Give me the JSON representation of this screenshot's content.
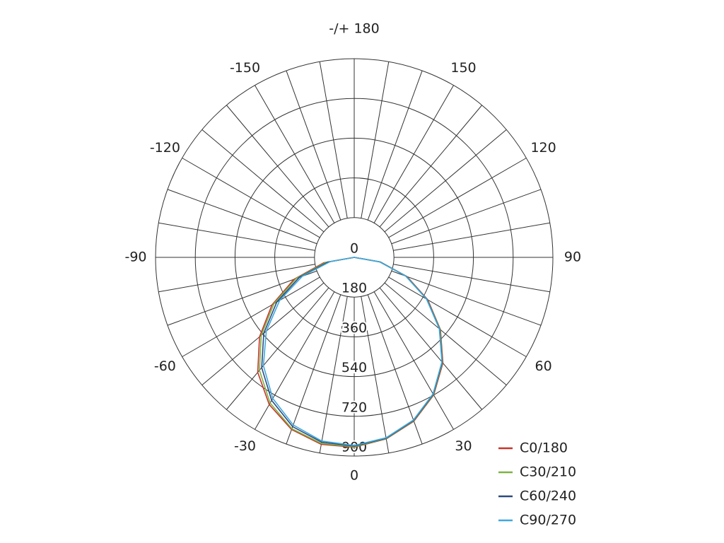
{
  "chart_data": {
    "type": "polar",
    "x": [
      -90,
      -80,
      -70,
      -60,
      -50,
      -40,
      -30,
      -20,
      -10,
      0,
      10,
      20,
      30,
      40,
      50,
      60,
      70,
      80,
      90
    ],
    "series": [
      {
        "name": "C0/180",
        "color": "#c8352b",
        "values": [
          0,
          140,
          290,
          430,
          560,
          680,
          770,
          830,
          860,
          860,
          835,
          790,
          720,
          625,
          510,
          385,
          255,
          120,
          0
        ]
      },
      {
        "name": "C30/210",
        "color": "#7cb342",
        "values": [
          0,
          130,
          280,
          420,
          550,
          668,
          762,
          826,
          856,
          858,
          834,
          788,
          718,
          622,
          508,
          382,
          252,
          120,
          0
        ]
      },
      {
        "name": "C60/240",
        "color": "#2d4a80",
        "values": [
          0,
          120,
          265,
          405,
          535,
          652,
          748,
          816,
          850,
          855,
          832,
          786,
          716,
          620,
          505,
          380,
          250,
          118,
          0
        ]
      },
      {
        "name": "C90/270",
        "color": "#40a8de",
        "values": [
          0,
          110,
          250,
          390,
          520,
          640,
          738,
          808,
          845,
          852,
          830,
          784,
          714,
          618,
          503,
          378,
          248,
          116,
          0
        ]
      }
    ],
    "rlim": [
      0,
      900
    ],
    "rticks": [
      0,
      180,
      360,
      540,
      720,
      900
    ],
    "angle_ticks": [
      0,
      30,
      60,
      90,
      120,
      150,
      {
        "value": 180,
        "label": "-/+ 180"
      },
      -150,
      -120,
      -90,
      -60,
      -30
    ],
    "angle_grid_step": 10,
    "grid": true
  }
}
